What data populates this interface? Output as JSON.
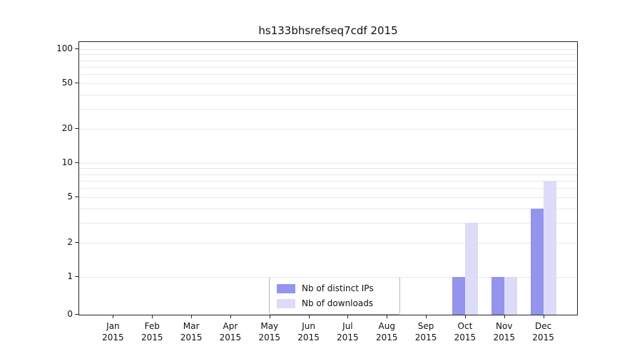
{
  "chart_data": {
    "type": "bar",
    "title": "hs133bhsrefseq7cdf 2015",
    "scale": "symlog",
    "categories": [
      {
        "month": "Jan",
        "year": "2015"
      },
      {
        "month": "Feb",
        "year": "2015"
      },
      {
        "month": "Mar",
        "year": "2015"
      },
      {
        "month": "Apr",
        "year": "2015"
      },
      {
        "month": "May",
        "year": "2015"
      },
      {
        "month": "Jun",
        "year": "2015"
      },
      {
        "month": "Jul",
        "year": "2015"
      },
      {
        "month": "Aug",
        "year": "2015"
      },
      {
        "month": "Sep",
        "year": "2015"
      },
      {
        "month": "Oct",
        "year": "2015"
      },
      {
        "month": "Nov",
        "year": "2015"
      },
      {
        "month": "Dec",
        "year": "2015"
      }
    ],
    "series": [
      {
        "name": "Nb of distinct IPs",
        "color": "#9494ed",
        "values": [
          0,
          0,
          0,
          0,
          0,
          0,
          0,
          0,
          0,
          1,
          1,
          4
        ]
      },
      {
        "name": "Nb of downloads",
        "color": "#dcdcf8",
        "values": [
          0,
          0,
          0,
          0,
          0,
          0,
          0,
          0,
          0,
          3,
          1,
          7
        ]
      }
    ],
    "yticks": [
      0,
      1,
      2,
      5,
      10,
      20,
      50,
      100
    ],
    "grid_values": [
      1,
      2,
      3,
      4,
      5,
      6,
      7,
      8,
      9,
      10,
      20,
      30,
      40,
      50,
      60,
      70,
      80,
      90,
      100
    ],
    "ylim": [
      0,
      120
    ],
    "grid_color": "#e7e7e7",
    "axis_color": "#262626",
    "legend_position": "bottom-center"
  }
}
